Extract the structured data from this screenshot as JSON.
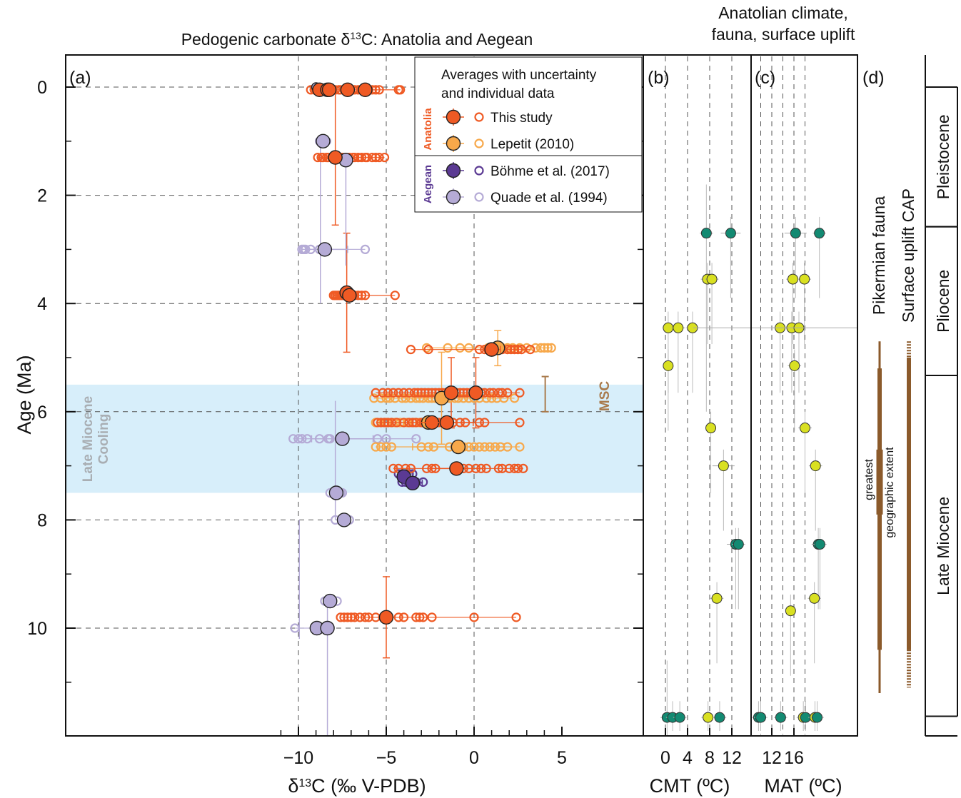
{
  "colors": {
    "this_study": "#ef5a24",
    "lepetit": "#f7a84a",
    "bohme": "#5b3a93",
    "quade": "#b5abd6",
    "cooling_band": "#d7eefa",
    "fauna": "#8b5a2b",
    "cmt_warm": "#138a72",
    "cmt_cool": "#d9e021"
  },
  "chart_data": [
    {
      "panel": "(a)",
      "type": "scatter",
      "title": "Pedogenic carbonate δ13C: Anatolia and Aegean",
      "xlabel": "δ13C (‰ V-PDB)",
      "ylabel": "Age (Ma)",
      "xlim": [
        -12,
        5
      ],
      "ylim": [
        0,
        12
      ],
      "y_inverted": true,
      "x_ticks": [
        "−10",
        "−5",
        "0",
        "5"
      ],
      "y_ticks": [
        "0",
        "2",
        "4",
        "6",
        "8",
        "10"
      ],
      "grid": "dashed",
      "legend": {
        "title": [
          "Averages with uncertainty",
          "and individual data"
        ],
        "group_anatolia": "Anatolia",
        "group_aegean": "Aegean",
        "entries": [
          "This study",
          "Lepetit (2010)",
          "Böhme et al. (2017)",
          "Quade et al. (1994)"
        ]
      },
      "shaded_band": {
        "label": [
          "Late Miocene",
          "Cooling"
        ],
        "age_from": 5.5,
        "age_to": 7.5
      },
      "msc": {
        "label": "MSC",
        "age_from": 5.35,
        "age_to": 6.0,
        "x": 4.05
      },
      "series": [
        {
          "name": "This study",
          "averages": [
            {
              "x": -8.8,
              "y": 0.05,
              "xerr": 0
            },
            {
              "x": -8.35,
              "y": 0.05,
              "xerr": 0
            },
            {
              "x": -8.25,
              "y": 0.05,
              "xerr": 0
            },
            {
              "x": -7.2,
              "y": 0.05,
              "xerr": 0
            },
            {
              "x": -6.2,
              "y": 0.05,
              "xerr": 0
            },
            {
              "x": -7.9,
              "y": 1.3,
              "yerr_low": 2.55,
              "yerr_high": 0
            },
            {
              "x": -7.25,
              "y": 3.8,
              "yerr_low": 4.9,
              "yerr_high": 2.7
            },
            {
              "x": -7.1,
              "y": 3.85
            },
            {
              "x": 1.0,
              "y": 4.85,
              "xerr": 0.5
            },
            {
              "x": -1.3,
              "y": 5.65,
              "yerr_low": 6.3,
              "yerr_high": 5.0
            },
            {
              "x": 0.1,
              "y": 5.65,
              "yerr_low": 6.3,
              "yerr_high": 5.0
            },
            {
              "x": -2.4,
              "y": 6.2
            },
            {
              "x": -1.55,
              "y": 6.2,
              "xerr": 1.5
            },
            {
              "x": -1.0,
              "y": 7.05,
              "xerr": 1.5
            },
            {
              "x": -5.0,
              "y": 9.8,
              "yerr_low": 10.55,
              "yerr_high": 9.05
            }
          ],
          "individual": [
            {
              "y": 0.05,
              "x": [
                -9.3,
                -9.1,
                -9.0,
                -8.8,
                -8.6,
                -8.5,
                -8.3,
                -8.1,
                -7.9,
                -7.7,
                -7.6,
                -7.4,
                -7.2,
                -6.9,
                -6.8,
                -6.6,
                -6.4,
                -6.2,
                -6.0,
                -5.8,
                -5.6,
                -5.4,
                -4.3,
                -4.2
              ]
            },
            {
              "y": 1.3,
              "x": [
                -8.9,
                -8.7,
                -8.6,
                -8.4,
                -8.3,
                -8.1,
                -7.9,
                -7.8,
                -7.6,
                -7.5,
                -7.3,
                -7.1,
                -6.9,
                -6.8,
                -6.6,
                -6.4,
                -6.2,
                -6.1,
                -5.8,
                -5.6,
                -5.4,
                -5.1
              ]
            },
            {
              "y": 3.85,
              "x": [
                -8.0,
                -7.9,
                -7.8,
                -7.7,
                -7.6,
                -7.5,
                -7.4,
                -7.3,
                -7.2,
                -7.0,
                -6.9,
                -6.8,
                -6.6,
                -6.4,
                -6.2,
                -4.5
              ]
            },
            {
              "y": 4.85,
              "x": [
                -3.6,
                -2.6,
                0.3,
                0.6,
                0.8,
                1.1,
                1.6,
                1.9,
                2.1,
                2.3,
                2.5,
                2.7,
                3.2
              ]
            },
            {
              "y": 5.65,
              "x": [
                -5.6,
                -5.2,
                -4.9,
                -4.6,
                -4.3,
                -4.0,
                -3.7,
                -3.4,
                -3.2,
                -3.0,
                -2.8,
                -2.6,
                -2.4,
                -2.2,
                -2.0,
                -1.8,
                -1.6,
                -1.4,
                -1.2,
                -1.0,
                -0.8,
                -0.6,
                -0.4,
                -0.2,
                0.0,
                0.2,
                0.4,
                0.6,
                0.9,
                1.1,
                1.4,
                1.6,
                1.9,
                2.6
              ]
            },
            {
              "y": 6.2,
              "x": [
                -5.5,
                -5.3,
                -5.1,
                -4.9,
                -4.7,
                -4.4,
                -4.0,
                -3.7,
                -3.5,
                -3.3,
                -3.0,
                -2.8,
                -2.6,
                -2.4,
                -2.2,
                -2.0,
                -1.8,
                -1.6,
                -1.4,
                -1.2,
                -0.8,
                -0.5,
                0.3,
                0.6,
                2.6
              ]
            },
            {
              "y": 7.05,
              "x": [
                -4.6,
                -4.3,
                -3.9,
                -3.6,
                -2.7,
                -2.4,
                -2.2,
                -1.1,
                -0.6,
                -0.3,
                0.1,
                0.4,
                0.7,
                1.4,
                1.6,
                2.0,
                2.3,
                2.5,
                2.8
              ]
            },
            {
              "y": 9.8,
              "x": [
                -7.6,
                -7.4,
                -7.2,
                -7.0,
                -6.8,
                -6.5,
                -6.2,
                -6.0,
                -5.6,
                -5.2,
                -4.9,
                -4.3,
                -4.0,
                -3.3,
                -3.1,
                -2.9,
                -2.4,
                0.0,
                2.4
              ]
            }
          ]
        },
        {
          "name": "Lepetit (2010)",
          "averages": [
            {
              "x": 1.35,
              "y": 4.82,
              "yerr_low": 5.15,
              "yerr_high": 4.5
            },
            {
              "x": -1.85,
              "y": 5.75,
              "yerr_low": 6.6,
              "yerr_high": 4.9
            },
            {
              "x": -2.6,
              "y": 6.2
            },
            {
              "x": -0.9,
              "y": 6.65,
              "xerr": 2.6
            }
          ],
          "individual": [
            {
              "y": 4.82,
              "x": [
                -2.7,
                -1.5,
                -0.8,
                -0.3,
                0.8,
                1.3,
                1.6,
                1.9,
                2.2,
                2.6,
                3.0,
                3.5,
                3.8,
                4.0,
                4.2,
                4.4
              ]
            },
            {
              "y": 5.75,
              "x": [
                -5.7,
                -5.3,
                -5.0,
                -4.8,
                -4.5,
                -4.1,
                -3.9,
                -3.6,
                -3.3,
                -3.1,
                -2.9,
                -2.6,
                -2.4,
                -2.2,
                -2.0,
                -1.8,
                -1.6,
                -1.4,
                -1.1,
                -0.9,
                -0.6,
                -0.3,
                0.0,
                0.3,
                0.7,
                1.0,
                1.3,
                1.7,
                2.3
              ]
            },
            {
              "y": 6.2,
              "x": [
                -5.6,
                -5.0,
                -4.5,
                -4.2,
                -3.8,
                -3.4,
                -3.1,
                -2.8,
                -2.3,
                -2.0
              ]
            },
            {
              "y": 6.65,
              "x": [
                -5.6,
                -5.3,
                -5.0,
                -4.7,
                -3.0,
                -2.6,
                -2.3,
                -1.4,
                -1.1,
                -0.8,
                -0.6,
                -0.3,
                0.0,
                0.3,
                0.6,
                0.9,
                1.2,
                1.5,
                1.9,
                2.6
              ]
            }
          ]
        },
        {
          "name": "Böhme et al. (2017)",
          "averages": [
            {
              "x": -4.0,
              "y": 7.2
            },
            {
              "x": -3.5,
              "y": 7.32,
              "xerr": 0.55
            }
          ],
          "individual": [
            {
              "y": 7.15,
              "x": [
                -4.3,
                -4.1,
                -3.9,
                -3.7,
                -3.5
              ]
            },
            {
              "y": 7.3,
              "x": [
                -4.1,
                -3.9,
                -3.7,
                -3.5,
                -3.3,
                -2.9
              ]
            }
          ]
        },
        {
          "name": "Quade et al. (1994)",
          "averages": [
            {
              "x": -9.0,
              "y": 0.0
            },
            {
              "x": -8.6,
              "y": 1.0
            },
            {
              "x": -8.5,
              "y": 3.0,
              "xerr": 1.3
            },
            {
              "x": -7.3,
              "y": 1.35
            },
            {
              "x": -7.5,
              "y": 6.5,
              "xerr": 1.75
            },
            {
              "x": -7.85,
              "y": 7.5
            },
            {
              "x": -7.4,
              "y": 8.0
            },
            {
              "x": -8.2,
              "y": 9.5
            },
            {
              "x": -8.95,
              "y": 10.0
            },
            {
              "x": -8.35,
              "y": 10.0
            }
          ],
          "individual": [
            {
              "y": 1.0,
              "x": [
                -8.8,
                -8.7,
                -8.5,
                -8.4
              ]
            },
            {
              "y": 3.0,
              "x": [
                -9.8,
                -9.7,
                -9.6,
                -9.3,
                -8.8,
                -6.2
              ]
            },
            {
              "y": 6.5,
              "x": [
                -10.3,
                -10.0,
                -9.8,
                -9.5,
                -8.8,
                -8.3,
                -8.2,
                -5.5,
                -5.0,
                -3.3
              ]
            },
            {
              "y": 7.5,
              "x": [
                -8.2,
                -7.6,
                -7.5
              ]
            },
            {
              "y": 8.0,
              "x": [
                -7.9,
                -7.1
              ]
            },
            {
              "y": 9.5,
              "x": [
                -8.5,
                -7.8
              ]
            },
            {
              "y": 10.0,
              "x": [
                -10.2,
                -8.3
              ]
            }
          ]
        }
      ]
    },
    {
      "panel": "(b)",
      "type": "scatter",
      "header": [
        "Anatolian climate,",
        "fauna, surface uplift"
      ],
      "xlabel": "CMT (ºC)",
      "xlim": [
        -2,
        14.5
      ],
      "x_ticks": [
        "0",
        "4",
        "8",
        "12"
      ],
      "points": [
        {
          "x": 7.4,
          "y": 2.7,
          "color": "warm",
          "yerr_low": 6.0,
          "yerr_high": 1.8
        },
        {
          "x": 11.8,
          "y": 2.7,
          "color": "warm",
          "xerr": 1.8
        },
        {
          "x": 7.6,
          "y": 3.55,
          "color": "cool"
        },
        {
          "x": 8.4,
          "y": 3.55,
          "color": "cool"
        },
        {
          "x": 0.5,
          "y": 4.45,
          "color": "cool",
          "xerr": 1.0
        },
        {
          "x": 2.3,
          "y": 4.45,
          "color": "cool",
          "xerr": 1.2
        },
        {
          "x": 4.9,
          "y": 4.45,
          "color": "cool"
        },
        {
          "x": 0.5,
          "y": 5.15,
          "color": "cool",
          "xerr": 0.3
        },
        {
          "x": 8.2,
          "y": 6.3,
          "color": "cool",
          "xerr": 0.8
        },
        {
          "x": 10.5,
          "y": 7.0,
          "color": "cool",
          "xerr": 2.0
        },
        {
          "x": 12.7,
          "y": 8.45,
          "color": "warm",
          "xerr": 1.6
        },
        {
          "x": 13.2,
          "y": 8.45,
          "color": "warm"
        },
        {
          "x": 9.3,
          "y": 9.45,
          "color": "cool"
        },
        {
          "x": 0.3,
          "y": 11.65,
          "color": "warm",
          "yerr_low": 12.0,
          "yerr_high": 10.6
        },
        {
          "x": 1.3,
          "y": 11.65,
          "color": "warm"
        },
        {
          "x": 2.6,
          "y": 11.65,
          "color": "warm"
        },
        {
          "x": 7.7,
          "y": 11.65,
          "color": "cool"
        },
        {
          "x": 9.8,
          "y": 11.65,
          "color": "warm"
        }
      ]
    },
    {
      "panel": "(c)",
      "type": "scatter",
      "xlabel": "MAT (ºC)",
      "xlim": [
        9.2,
        20.8
      ],
      "x_ticks": [
        "12",
        "16"
      ],
      "points": [
        {
          "x": 16.3,
          "y": 2.7,
          "color": "warm",
          "xerr": 2.0
        },
        {
          "x": 20.6,
          "y": 2.7,
          "color": "warm"
        },
        {
          "x": 15.8,
          "y": 3.55,
          "color": "cool"
        },
        {
          "x": 17.9,
          "y": 3.55,
          "color": "cool"
        },
        {
          "x": 13.5,
          "y": 4.45,
          "color": "cool"
        },
        {
          "x": 15.6,
          "y": 4.45,
          "color": "cool"
        },
        {
          "x": 16.9,
          "y": 4.45,
          "color": "cool"
        },
        {
          "x": 16.1,
          "y": 5.15,
          "color": "cool"
        },
        {
          "x": 18.0,
          "y": 6.3,
          "color": "cool"
        },
        {
          "x": 19.9,
          "y": 7.0,
          "color": "cool"
        },
        {
          "x": 20.4,
          "y": 8.45,
          "color": "warm"
        },
        {
          "x": 20.7,
          "y": 8.45,
          "color": "warm"
        },
        {
          "x": 19.7,
          "y": 9.45,
          "color": "cool"
        },
        {
          "x": 15.4,
          "y": 9.68,
          "color": "cool",
          "xerr": 0.8
        },
        {
          "x": 9.6,
          "y": 11.65,
          "color": "warm"
        },
        {
          "x": 10.0,
          "y": 11.65,
          "color": "warm"
        },
        {
          "x": 13.6,
          "y": 11.65,
          "color": "warm"
        },
        {
          "x": 17.7,
          "y": 11.65,
          "color": "cool"
        },
        {
          "x": 18.1,
          "y": 11.65,
          "color": "warm"
        },
        {
          "x": 19.8,
          "y": 11.65,
          "color": "cool"
        },
        {
          "x": 20.2,
          "y": 11.65,
          "color": "warm"
        }
      ]
    },
    {
      "panel": "(d)",
      "type": "range",
      "ranges": [
        {
          "label": "Pikermian fauna",
          "from": 4.7,
          "to": 11.2,
          "thick_from": 5.2,
          "thick_to": 10.4
        },
        {
          "label": "greatest geographic extent",
          "from": 6.7,
          "to": 7.9
        },
        {
          "label": "Surface uplift CAP",
          "from": 4.7,
          "to": 11.1,
          "dashed_ends": true,
          "thick_from": 5.0,
          "thick_to": 10.4
        }
      ],
      "inner_label_lines": [
        "greatest",
        "geographic extent"
      ]
    },
    {
      "panel": "epochs",
      "type": "table",
      "epochs": [
        {
          "name": "Pleistocene",
          "from": 0,
          "to": 2.58
        },
        {
          "name": "Pliocene",
          "from": 2.58,
          "to": 5.33
        },
        {
          "name": "Late Miocene",
          "from": 5.33,
          "to": 11.63
        }
      ]
    }
  ]
}
